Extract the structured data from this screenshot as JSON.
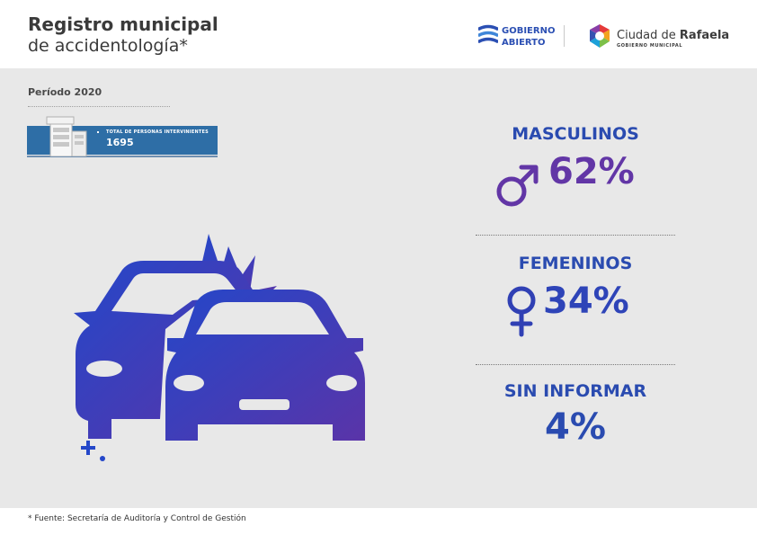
{
  "header": {
    "title_line1": "Registro municipal",
    "title_line2": "de accidentología*",
    "logo_gobierno_line1": "GOBIERNO",
    "logo_gobierno_line2": "ABIERTO",
    "logo_ciudad_prefix": "Ciudad de ",
    "logo_ciudad_name": "Rafaela",
    "logo_ciudad_sub": "GOBIERNO MUNICIPAL"
  },
  "period": "Período 2020",
  "total": {
    "label": "TOTAL DE PERSONAS INTERVINIENTES",
    "value": "1695"
  },
  "stats": [
    {
      "label": "MASCULINOS",
      "value": "62%",
      "icon": "male-symbol-icon"
    },
    {
      "label": "FEMENINOS",
      "value": "34%",
      "icon": "female-symbol-icon"
    },
    {
      "label": "SIN INFORMAR",
      "value": "4%"
    }
  ],
  "footer": "* Fuente:  Secretaría de Auditoría y Control de Gestión",
  "colors": {
    "primary_blue": "#2a4bb0",
    "purple": "#6236a6",
    "header_bg": "#ffffff",
    "panel_bg": "#e8e8e8"
  }
}
